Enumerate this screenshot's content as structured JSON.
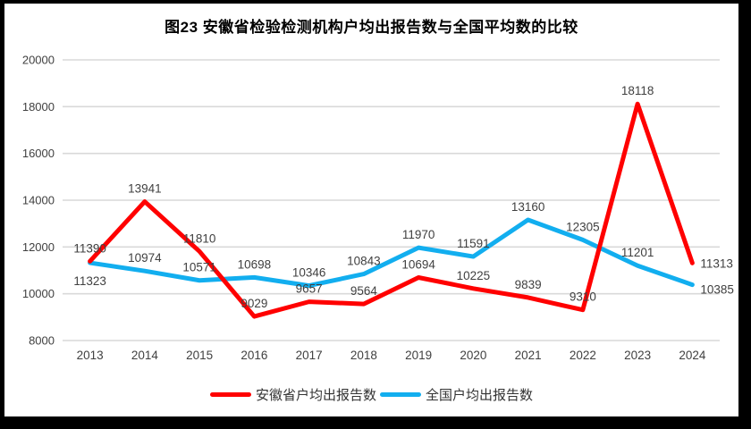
{
  "title": "图23 安徽省检验检测机构户均出报告数与全国平均数的比较",
  "colors": {
    "anhui_line": "#FF0000",
    "national_line": "#12AEEF",
    "gridline": "#D9D9D9",
    "axis_label": "#404040",
    "data_label": "#404040",
    "frame_border": "#000000",
    "background": "#FFFFFF"
  },
  "chart_data": {
    "type": "line",
    "title": "图23 安徽省检验检测机构户均出报告数与全国平均数的比较",
    "categories": [
      "2013",
      "2014",
      "2015",
      "2016",
      "2017",
      "2018",
      "2019",
      "2020",
      "2021",
      "2022",
      "2023",
      "2024"
    ],
    "series": [
      {
        "name": "安徽省户均出报告数",
        "color": "#FF0000",
        "values": [
          11390,
          13941,
          11810,
          9029,
          9657,
          9564,
          10694,
          10225,
          9839,
          9310,
          18118,
          11313
        ]
      },
      {
        "name": "全国户均出报告数",
        "color": "#12AEEF",
        "values": [
          11323,
          10974,
          10571,
          10698,
          10346,
          10843,
          11970,
          11591,
          13160,
          12305,
          11201,
          10385
        ]
      }
    ],
    "ylim": [
      8000,
      20000
    ],
    "ytick_step": 2000,
    "yticks": [
      8000,
      10000,
      12000,
      14000,
      16000,
      18000,
      20000
    ],
    "xlabel": "",
    "ylabel": "",
    "grid": "horizontal",
    "data_labels": true,
    "legend_position": "bottom"
  },
  "legend": {
    "items": [
      {
        "label": "安徽省户均出报告数",
        "color": "#FF0000"
      },
      {
        "label": "全国户均出报告数",
        "color": "#12AEEF"
      }
    ]
  }
}
